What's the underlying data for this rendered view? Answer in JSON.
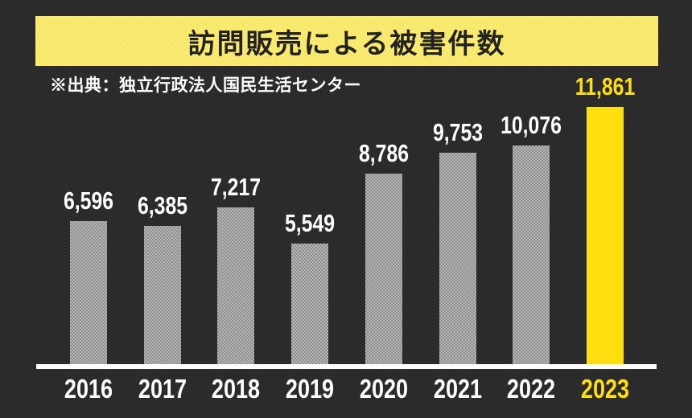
{
  "title_banner": {
    "text": "訪問販売による被害件数"
  },
  "source_note": "※出典：独立行政法人国民生活センター",
  "chart_data": {
    "type": "bar",
    "title": "訪問販売による被害件数",
    "source": "※出典：独立行政法人国民生活センター",
    "categories": [
      "2016",
      "2017",
      "2018",
      "2019",
      "2020",
      "2021",
      "2022",
      "2023"
    ],
    "values": [
      6596,
      6385,
      7217,
      5549,
      8786,
      9753,
      10076,
      11861
    ],
    "value_labels": [
      "6,596",
      "6,385",
      "7,217",
      "5,549",
      "8,786",
      "9,753",
      "10,076",
      "11,861"
    ],
    "highlight_index": 7,
    "xlabel": "",
    "ylabel": "",
    "ylim": [
      0,
      11861
    ],
    "grid": false,
    "legend": "none",
    "colors": {
      "background": "#2b2b2b",
      "banner_checker_light": "#fdf07e",
      "banner_checker_dark": "#f7e35f",
      "title_text": "#222222",
      "bar_checker_light": "#b5b5b5",
      "bar_checker_dark": "#8f8f8f",
      "bar_highlight": "#ffdf0f",
      "axis_line": "#ffffff",
      "label_text": "#ffffff",
      "label_highlight": "#ffdf0f"
    }
  }
}
